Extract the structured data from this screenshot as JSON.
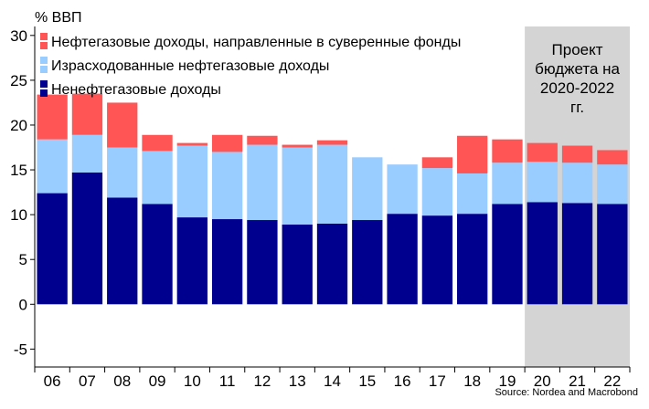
{
  "chart_data": {
    "type": "bar",
    "stacked": true,
    "ylabel": "% ВВП",
    "ylim": [
      -7,
      31
    ],
    "yticks": [
      -5,
      0,
      5,
      10,
      15,
      20,
      25,
      30
    ],
    "categories": [
      "06",
      "07",
      "08",
      "09",
      "10",
      "11",
      "12",
      "13",
      "14",
      "15",
      "16",
      "17",
      "18",
      "19",
      "20",
      "21",
      "22"
    ],
    "series": [
      {
        "name": "Ненефтегазовые доходы",
        "color": "#00008f",
        "values": [
          12.4,
          14.7,
          11.9,
          11.2,
          9.7,
          9.5,
          9.4,
          8.9,
          9.0,
          9.4,
          10.1,
          9.9,
          10.1,
          11.2,
          11.4,
          11.3,
          11.2
        ]
      },
      {
        "name": "Израсходованные нефтегазовые доходы",
        "color": "#99ccff",
        "values": [
          6.0,
          4.2,
          5.6,
          5.9,
          8.0,
          7.5,
          8.4,
          8.6,
          8.8,
          7.0,
          5.5,
          5.3,
          4.5,
          4.6,
          4.5,
          4.5,
          4.4
        ]
      },
      {
        "name": "Нефтегазовые доходы, направленные в суверенные фонды",
        "color": "#ff5555",
        "values": [
          5.0,
          4.6,
          5.0,
          1.8,
          0.3,
          1.9,
          1.0,
          0.3,
          0.5,
          0.0,
          0.0,
          1.2,
          4.2,
          2.6,
          2.1,
          1.9,
          1.6
        ]
      }
    ],
    "legend_order": [
      2,
      1,
      0
    ],
    "legend_position": "top-left",
    "highlight": {
      "from_category": "20",
      "to_category": "22",
      "color": "#d4d4d4",
      "label_lines": [
        "Проект",
        "бюджета на",
        "2020-2022",
        "гг."
      ]
    },
    "grid": false
  },
  "source": "Source: Nordea and Macrobond"
}
